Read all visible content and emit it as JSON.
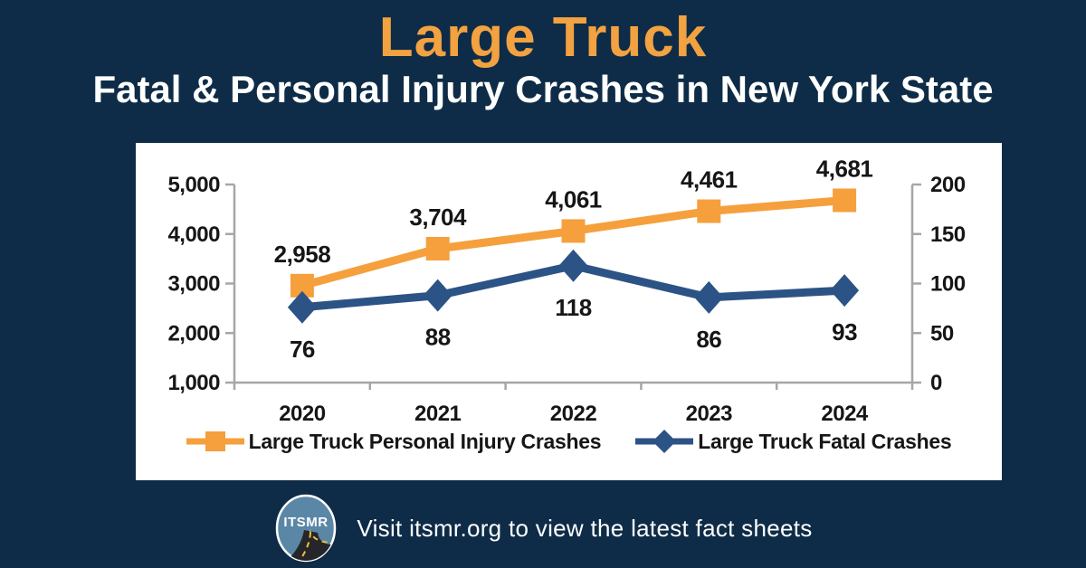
{
  "header": {
    "title": "Large Truck",
    "subtitle": "Fatal & Personal Injury Crashes in New York State"
  },
  "footer": {
    "logo_text": "ITSMR",
    "message": "Visit itsmr.org to view the latest fact sheets"
  },
  "colors": {
    "background": "#0E2C47",
    "card": "#FFFFFF",
    "title_orange": "#F2A241",
    "injury_series": "#F5A03C",
    "fatal_series": "#2C5385",
    "axis_line": "#A6A6A6",
    "chart_text": "#161616",
    "logo_circle": "#5B87A6",
    "logo_road": "#26262A",
    "logo_road_line": "#E8C33C"
  },
  "chart_data": {
    "type": "line",
    "title": "",
    "categories": [
      "2020",
      "2021",
      "2022",
      "2023",
      "2024"
    ],
    "series": [
      {
        "name": "Large Truck Personal Injury Crashes",
        "values": [
          2958,
          3704,
          4061,
          4461,
          4681
        ],
        "labels": [
          "2,958",
          "3,704",
          "4,061",
          "4,461",
          "4,681"
        ],
        "axis": "left",
        "marker": "square",
        "color": "#F5A03C"
      },
      {
        "name": "Large Truck Fatal Crashes",
        "values": [
          76,
          88,
          118,
          86,
          93
        ],
        "labels": [
          "76",
          "88",
          "118",
          "86",
          "93"
        ],
        "axis": "right",
        "marker": "diamond",
        "color": "#2C5385"
      }
    ],
    "left_axis": {
      "min": 1000,
      "max": 5000,
      "step": 1000,
      "tick_labels": [
        "1,000",
        "2,000",
        "3,000",
        "4,000",
        "5,000"
      ]
    },
    "right_axis": {
      "min": 0,
      "max": 200,
      "step": 50,
      "tick_labels": [
        "0",
        "50",
        "100",
        "150",
        "200"
      ]
    },
    "grid": false,
    "legend_position": "bottom"
  }
}
